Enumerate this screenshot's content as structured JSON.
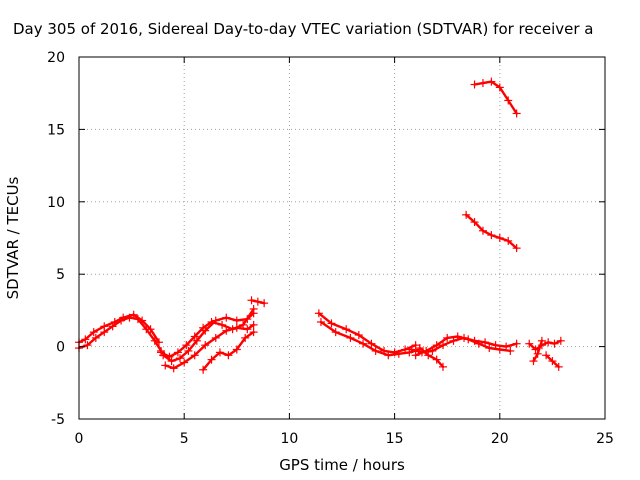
{
  "chart_data": {
    "type": "scatter",
    "title": "Day 305 of 2016, Sidereal Day-to-day VTEC variation (SDTVAR) for receiver a",
    "xlabel": "GPS time / hours",
    "ylabel": "SDTVAR / TECUs",
    "xlim": [
      0,
      25
    ],
    "ylim": [
      -5,
      20
    ],
    "xticks": [
      0,
      5,
      10,
      15,
      20,
      25
    ],
    "yticks": [
      -5,
      0,
      5,
      10,
      15,
      20
    ],
    "x_tick_labels": [
      "0",
      "5",
      "10",
      "15",
      "20",
      "25"
    ],
    "y_tick_labels": [
      "-5",
      "0",
      "5",
      "10",
      "15",
      "20"
    ],
    "grid": true,
    "marker": "cross",
    "color": "#ff0000",
    "series": [
      {
        "x": [
          0.0,
          0.3,
          0.7,
          1.2,
          1.7,
          2.1,
          2.6,
          3.0,
          3.4,
          3.8
        ],
        "y": [
          0.3,
          0.5,
          1.0,
          1.4,
          1.7,
          2.0,
          2.2,
          1.8,
          1.2,
          0.3
        ]
      },
      {
        "x": [
          0.0,
          0.4,
          0.8,
          1.2,
          1.6,
          2.0,
          2.4,
          2.8,
          3.2,
          3.6,
          3.9
        ],
        "y": [
          -0.1,
          0.1,
          0.6,
          1.0,
          1.4,
          1.8,
          2.0,
          1.9,
          1.2,
          0.4,
          -0.3
        ]
      },
      {
        "x": [
          4.0,
          4.4,
          4.8,
          5.2,
          5.6,
          6.0,
          6.5,
          7.0,
          7.5,
          8.0,
          8.3
        ],
        "y": [
          -0.6,
          -1.0,
          -0.8,
          -0.3,
          0.4,
          1.1,
          1.8,
          2.0,
          1.8,
          1.9,
          2.3
        ]
      },
      {
        "x": [
          4.1,
          4.5,
          5.0,
          5.5,
          6.0,
          6.5,
          7.0,
          7.5,
          8.0,
          8.3
        ],
        "y": [
          -1.3,
          -1.5,
          -1.1,
          -0.6,
          0.1,
          0.6,
          1.1,
          1.3,
          1.2,
          1.5
        ]
      },
      {
        "x": [
          3.9,
          4.3,
          4.7,
          5.1,
          5.5,
          5.9,
          6.3,
          6.8,
          7.3,
          7.8,
          8.3
        ],
        "y": [
          -0.4,
          -0.7,
          -0.4,
          0.1,
          0.7,
          1.3,
          1.7,
          1.5,
          1.2,
          1.5,
          2.6
        ]
      },
      {
        "x": [
          5.9,
          6.3,
          6.7,
          7.1,
          7.5,
          7.9,
          8.3
        ],
        "y": [
          -1.6,
          -0.9,
          -0.4,
          -0.6,
          -0.2,
          0.6,
          1.0
        ]
      },
      {
        "x": [
          8.2,
          8.5,
          8.8
        ],
        "y": [
          3.2,
          3.1,
          3.0
        ]
      },
      {
        "x": [
          11.4,
          12.0,
          12.7,
          13.3,
          13.9,
          14.5,
          15.0,
          15.5,
          16.0
        ],
        "y": [
          2.3,
          1.6,
          1.2,
          0.8,
          0.2,
          -0.3,
          -0.4,
          -0.2,
          0.1
        ]
      },
      {
        "x": [
          11.5,
          12.2,
          12.9,
          13.5,
          14.1,
          14.7,
          15.2,
          15.7,
          16.2
        ],
        "y": [
          1.7,
          1.0,
          0.6,
          0.2,
          -0.3,
          -0.6,
          -0.5,
          -0.4,
          -0.2
        ]
      },
      {
        "x": [
          15.8,
          16.3,
          16.8,
          17.3,
          17.8,
          18.3,
          18.8,
          19.3,
          19.8,
          20.3,
          20.8
        ],
        "y": [
          -0.2,
          -0.4,
          -0.3,
          0.1,
          0.4,
          0.6,
          0.4,
          0.3,
          0.1,
          0.0,
          0.2
        ]
      },
      {
        "x": [
          16.0,
          16.5,
          17.0,
          17.5,
          18.0,
          18.5,
          19.0,
          19.5,
          20.0,
          20.5
        ],
        "y": [
          -0.6,
          -0.3,
          0.1,
          0.6,
          0.7,
          0.5,
          0.2,
          -0.1,
          -0.2,
          -0.3
        ]
      },
      {
        "x": [
          16.2,
          16.6,
          17.0,
          17.3
        ],
        "y": [
          -0.1,
          -0.6,
          -0.9,
          -1.4
        ]
      },
      {
        "x": [
          18.4,
          18.8,
          19.2,
          19.6,
          20.0,
          20.4,
          20.8
        ],
        "y": [
          9.1,
          8.6,
          8.0,
          7.7,
          7.5,
          7.3,
          6.8
        ]
      },
      {
        "x": [
          18.8,
          19.2,
          19.6,
          20.0,
          20.4,
          20.8
        ],
        "y": [
          18.1,
          18.2,
          18.3,
          17.9,
          17.0,
          16.1
        ]
      },
      {
        "x": [
          21.4,
          21.7,
          22.0,
          22.3,
          22.6,
          22.9
        ],
        "y": [
          0.2,
          -0.2,
          0.1,
          0.3,
          0.2,
          0.4
        ]
      },
      {
        "x": [
          22.2,
          22.5,
          22.8
        ],
        "y": [
          -0.6,
          -1.0,
          -1.4
        ]
      },
      {
        "x": [
          21.6,
          21.8,
          22.0
        ],
        "y": [
          -1.0,
          -0.5,
          0.4
        ]
      }
    ]
  }
}
